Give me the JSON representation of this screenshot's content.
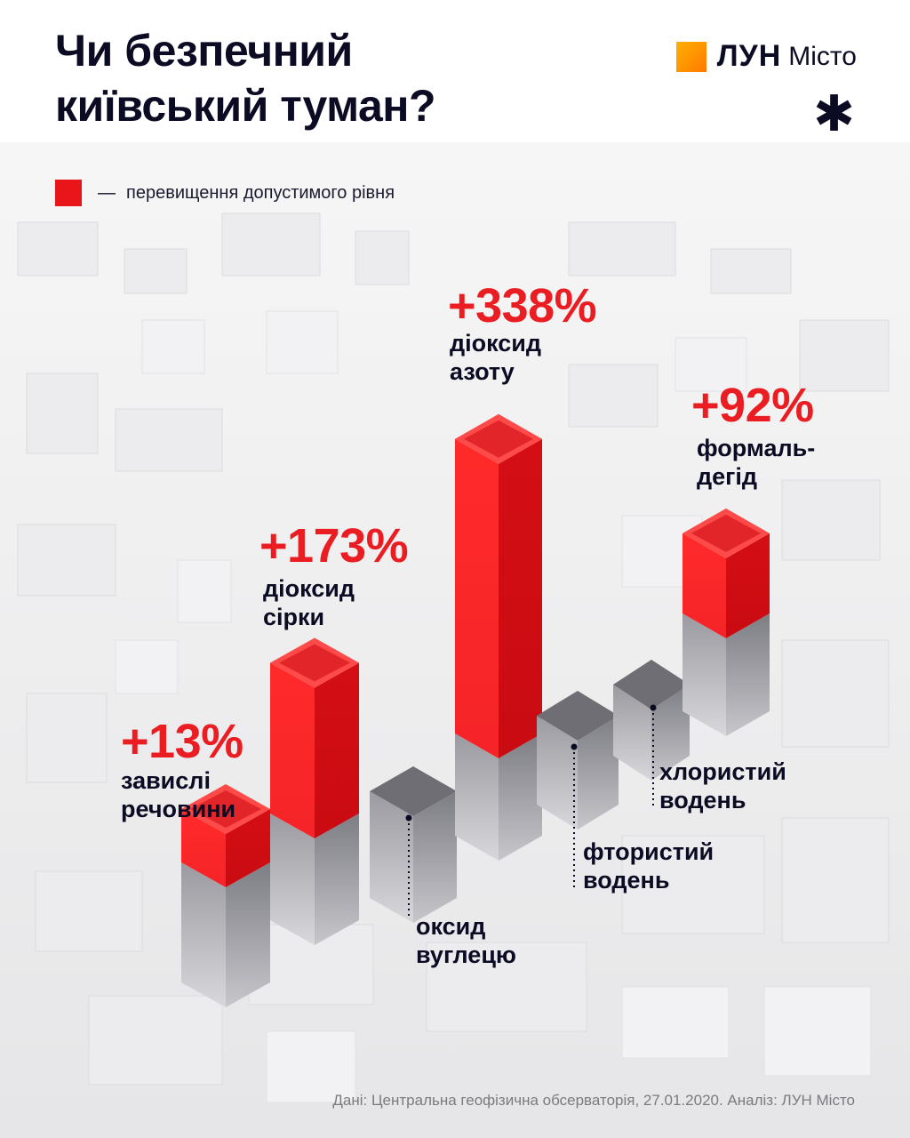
{
  "header": {
    "title_line1": "Чи безпечний",
    "title_line2": "київський туман?",
    "logo_word": "ЛУН",
    "logo_city": "Місто",
    "asterisk": "✱"
  },
  "legend": {
    "dash": "—",
    "text": "перевищення допустимого рівня",
    "color": "#e8161a"
  },
  "colors": {
    "exceed_red": "#ea1d22",
    "bar_grey": "#8d8d93",
    "text_dark": "#0b0b24"
  },
  "chart_data": {
    "type": "bar",
    "title": "Чи безпечний київський туман?",
    "unit": "% перевищення допустимого рівня",
    "series": [
      {
        "name": "перевищення допустимого рівня",
        "color": "#e8161a"
      }
    ],
    "categories": [
      {
        "label": [
          "завислі",
          "речовини"
        ],
        "value_label": "+13%",
        "exceed_percent": 13
      },
      {
        "label": [
          "діоксид",
          "сірки"
        ],
        "value_label": "+173%",
        "exceed_percent": 173
      },
      {
        "label": [
          "оксид",
          "вуглецю"
        ],
        "value_label": "",
        "exceed_percent": null
      },
      {
        "label": [
          "діоксид",
          "азоту"
        ],
        "value_label": "+338%",
        "exceed_percent": 338
      },
      {
        "label": [
          "фтористий",
          "водень"
        ],
        "value_label": "",
        "exceed_percent": null
      },
      {
        "label": [
          "хлористий",
          "водень"
        ],
        "value_label": "",
        "exceed_percent": null
      },
      {
        "label": [
          "формаль-",
          "дегід"
        ],
        "value_label": "+92%",
        "exceed_percent": 92
      }
    ]
  },
  "source": "Дані: Центральна геофізична обсерваторія, 27.01.2020. Аналіз: ЛУН Місто"
}
